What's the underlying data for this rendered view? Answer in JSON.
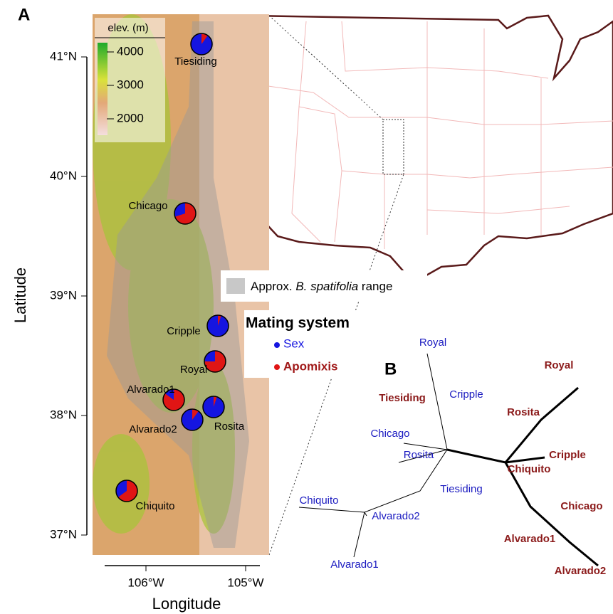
{
  "panel_a": {
    "label": "A",
    "legend_title": "elev. (m)",
    "elevation_ticks": [
      4000,
      3000,
      2000
    ],
    "y_axis_label": "Latitude",
    "x_axis_label": "Longitude",
    "yticks": [
      {
        "value": 41,
        "label": "41°N"
      },
      {
        "value": 40,
        "label": "40°N"
      },
      {
        "value": 39,
        "label": "39°N"
      },
      {
        "value": 38,
        "label": "38°N"
      },
      {
        "value": 37,
        "label": "37°N"
      }
    ],
    "xticks": [
      {
        "value": -106,
        "label": "106°W"
      },
      {
        "value": -105,
        "label": "105°W"
      }
    ],
    "range_legend": [
      "Approx. ",
      "B. spatifolia",
      " range"
    ],
    "mating_title": "Mating system",
    "sex_label": "Sex",
    "apomixis_label": "Apomixis",
    "sex_color": "#1515e0",
    "apomixis_color": "#e01515",
    "sites": [
      {
        "name": "Tiesiding",
        "apomixis": 10
      },
      {
        "name": "Chicago",
        "apomixis": 70
      },
      {
        "name": "Cripple",
        "apomixis": 5
      },
      {
        "name": "Royal",
        "apomixis": 75
      },
      {
        "name": "Alvarado1",
        "apomixis": 85
      },
      {
        "name": "Alvarado2",
        "apomixis": 10
      },
      {
        "name": "Rosita",
        "apomixis": 5
      },
      {
        "name": "Chiquito",
        "apomixis": 65
      }
    ]
  },
  "panel_b": {
    "label": "B",
    "sexual_tips": [
      "Royal",
      "Cripple",
      "Chicago",
      "Rosita",
      "Tiesiding",
      "Chiquito",
      "Alvarado2",
      "Alvarado1"
    ],
    "apomictic_tips": [
      "Tiesiding",
      "Royal",
      "Rosita",
      "Cripple",
      "Chiquito",
      "Chicago",
      "Alvarado1",
      "Alvarado2"
    ]
  }
}
